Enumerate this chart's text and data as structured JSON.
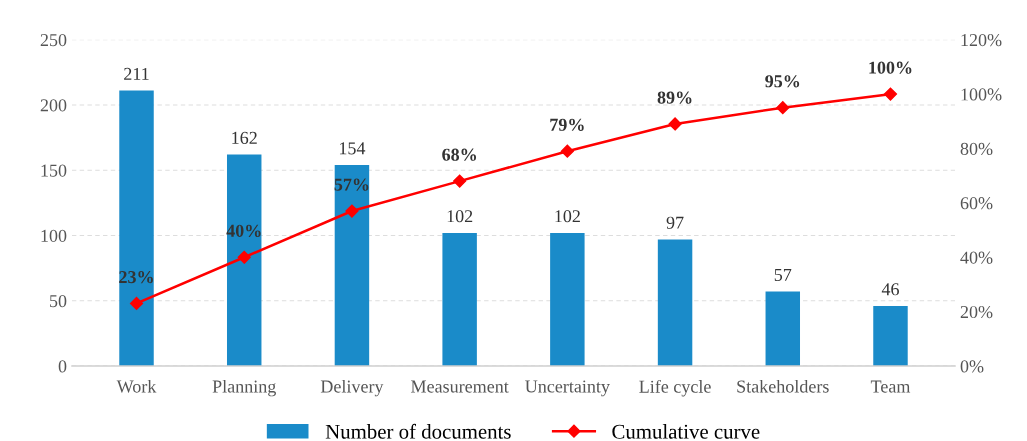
{
  "chart_data": {
    "type": "bar",
    "categories": [
      "Work",
      "Planning",
      "Delivery",
      "Measurement",
      "Uncertainty",
      "Life cycle",
      "Stakeholders",
      "Team"
    ],
    "series": [
      {
        "name": "Number of documents",
        "color": "#1a8bc9",
        "values": [
          211,
          162,
          154,
          102,
          102,
          97,
          57,
          46
        ],
        "value_labels": [
          "211",
          "162",
          "154",
          "102",
          "102",
          "97",
          "57",
          "46"
        ]
      },
      {
        "name": "Cumulative curve",
        "type": "line",
        "axis": "y2",
        "color": "#ff0000",
        "marker": "diamond",
        "values": [
          23,
          40,
          57,
          68,
          79,
          89,
          95,
          100
        ],
        "value_labels": [
          "23%",
          "40%",
          "57%",
          "68%",
          "79%",
          "89%",
          "95%",
          "100%"
        ]
      }
    ],
    "ylim": [
      0,
      250
    ],
    "yticks": [
      0,
      50,
      100,
      150,
      200,
      250
    ],
    "y2lim": [
      0,
      120
    ],
    "y2ticks": [
      {
        "value": 0,
        "label": "0%"
      },
      {
        "value": 20,
        "label": "20%"
      },
      {
        "value": 40,
        "label": "40%"
      },
      {
        "value": 60,
        "label": "60%"
      },
      {
        "value": 80,
        "label": "80%"
      },
      {
        "value": 100,
        "label": "100%"
      },
      {
        "value": 120,
        "label": "120%"
      }
    ],
    "grid": "y",
    "legend": "bottom"
  }
}
